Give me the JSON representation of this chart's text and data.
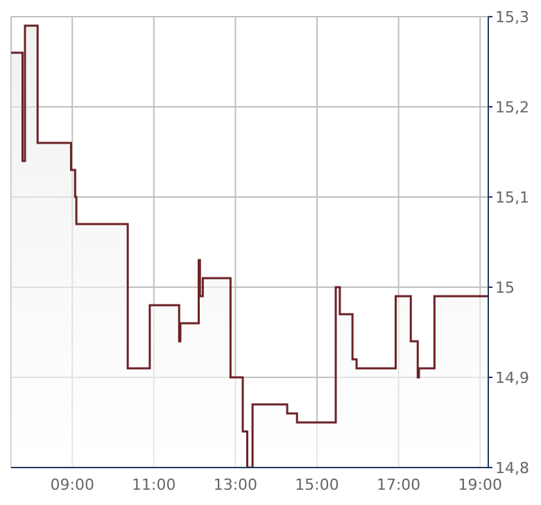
{
  "chart_data": {
    "type": "step",
    "x": [
      7.5,
      7.78,
      7.84,
      8.15,
      8.97,
      9.07,
      9.1,
      10.36,
      10.9,
      11.62,
      11.65,
      12.1,
      12.13,
      12.2,
      12.88,
      13.18,
      13.29,
      13.42,
      14.27,
      14.51,
      15.46,
      15.56,
      15.87,
      15.97,
      16.93,
      17.3,
      17.47,
      17.5,
      17.88,
      19.2
    ],
    "series": [
      {
        "color": "#6b2227",
        "values": [
          15.26,
          15.14,
          15.29,
          15.16,
          15.13,
          15.1,
          15.07,
          14.91,
          14.98,
          14.94,
          14.96,
          15.03,
          14.99,
          15.01,
          14.9,
          14.84,
          14.8,
          14.87,
          14.86,
          14.85,
          15.0,
          14.97,
          14.92,
          14.91,
          14.99,
          14.94,
          14.9,
          14.91,
          14.99,
          14.99
        ]
      }
    ],
    "xlim": [
      7.5,
      19.2
    ],
    "xticks": [
      {
        "value": 9,
        "label": "09:00"
      },
      {
        "value": 11,
        "label": "11:00"
      },
      {
        "value": 13,
        "label": "13:00"
      },
      {
        "value": 15,
        "label": "15:00"
      },
      {
        "value": 17,
        "label": "17:00"
      },
      {
        "value": 19,
        "label": "19:00"
      }
    ],
    "ylim": [
      14.8,
      15.3
    ],
    "yticks": [
      {
        "value": 14.8,
        "label": "14,8"
      },
      {
        "value": 14.9,
        "label": "14,9"
      },
      {
        "value": 15,
        "label": "15"
      },
      {
        "value": 15.1,
        "label": "15,1"
      },
      {
        "value": 15.2,
        "label": "15,2"
      },
      {
        "value": 15.3,
        "label": "15,3"
      }
    ],
    "grid": true
  }
}
